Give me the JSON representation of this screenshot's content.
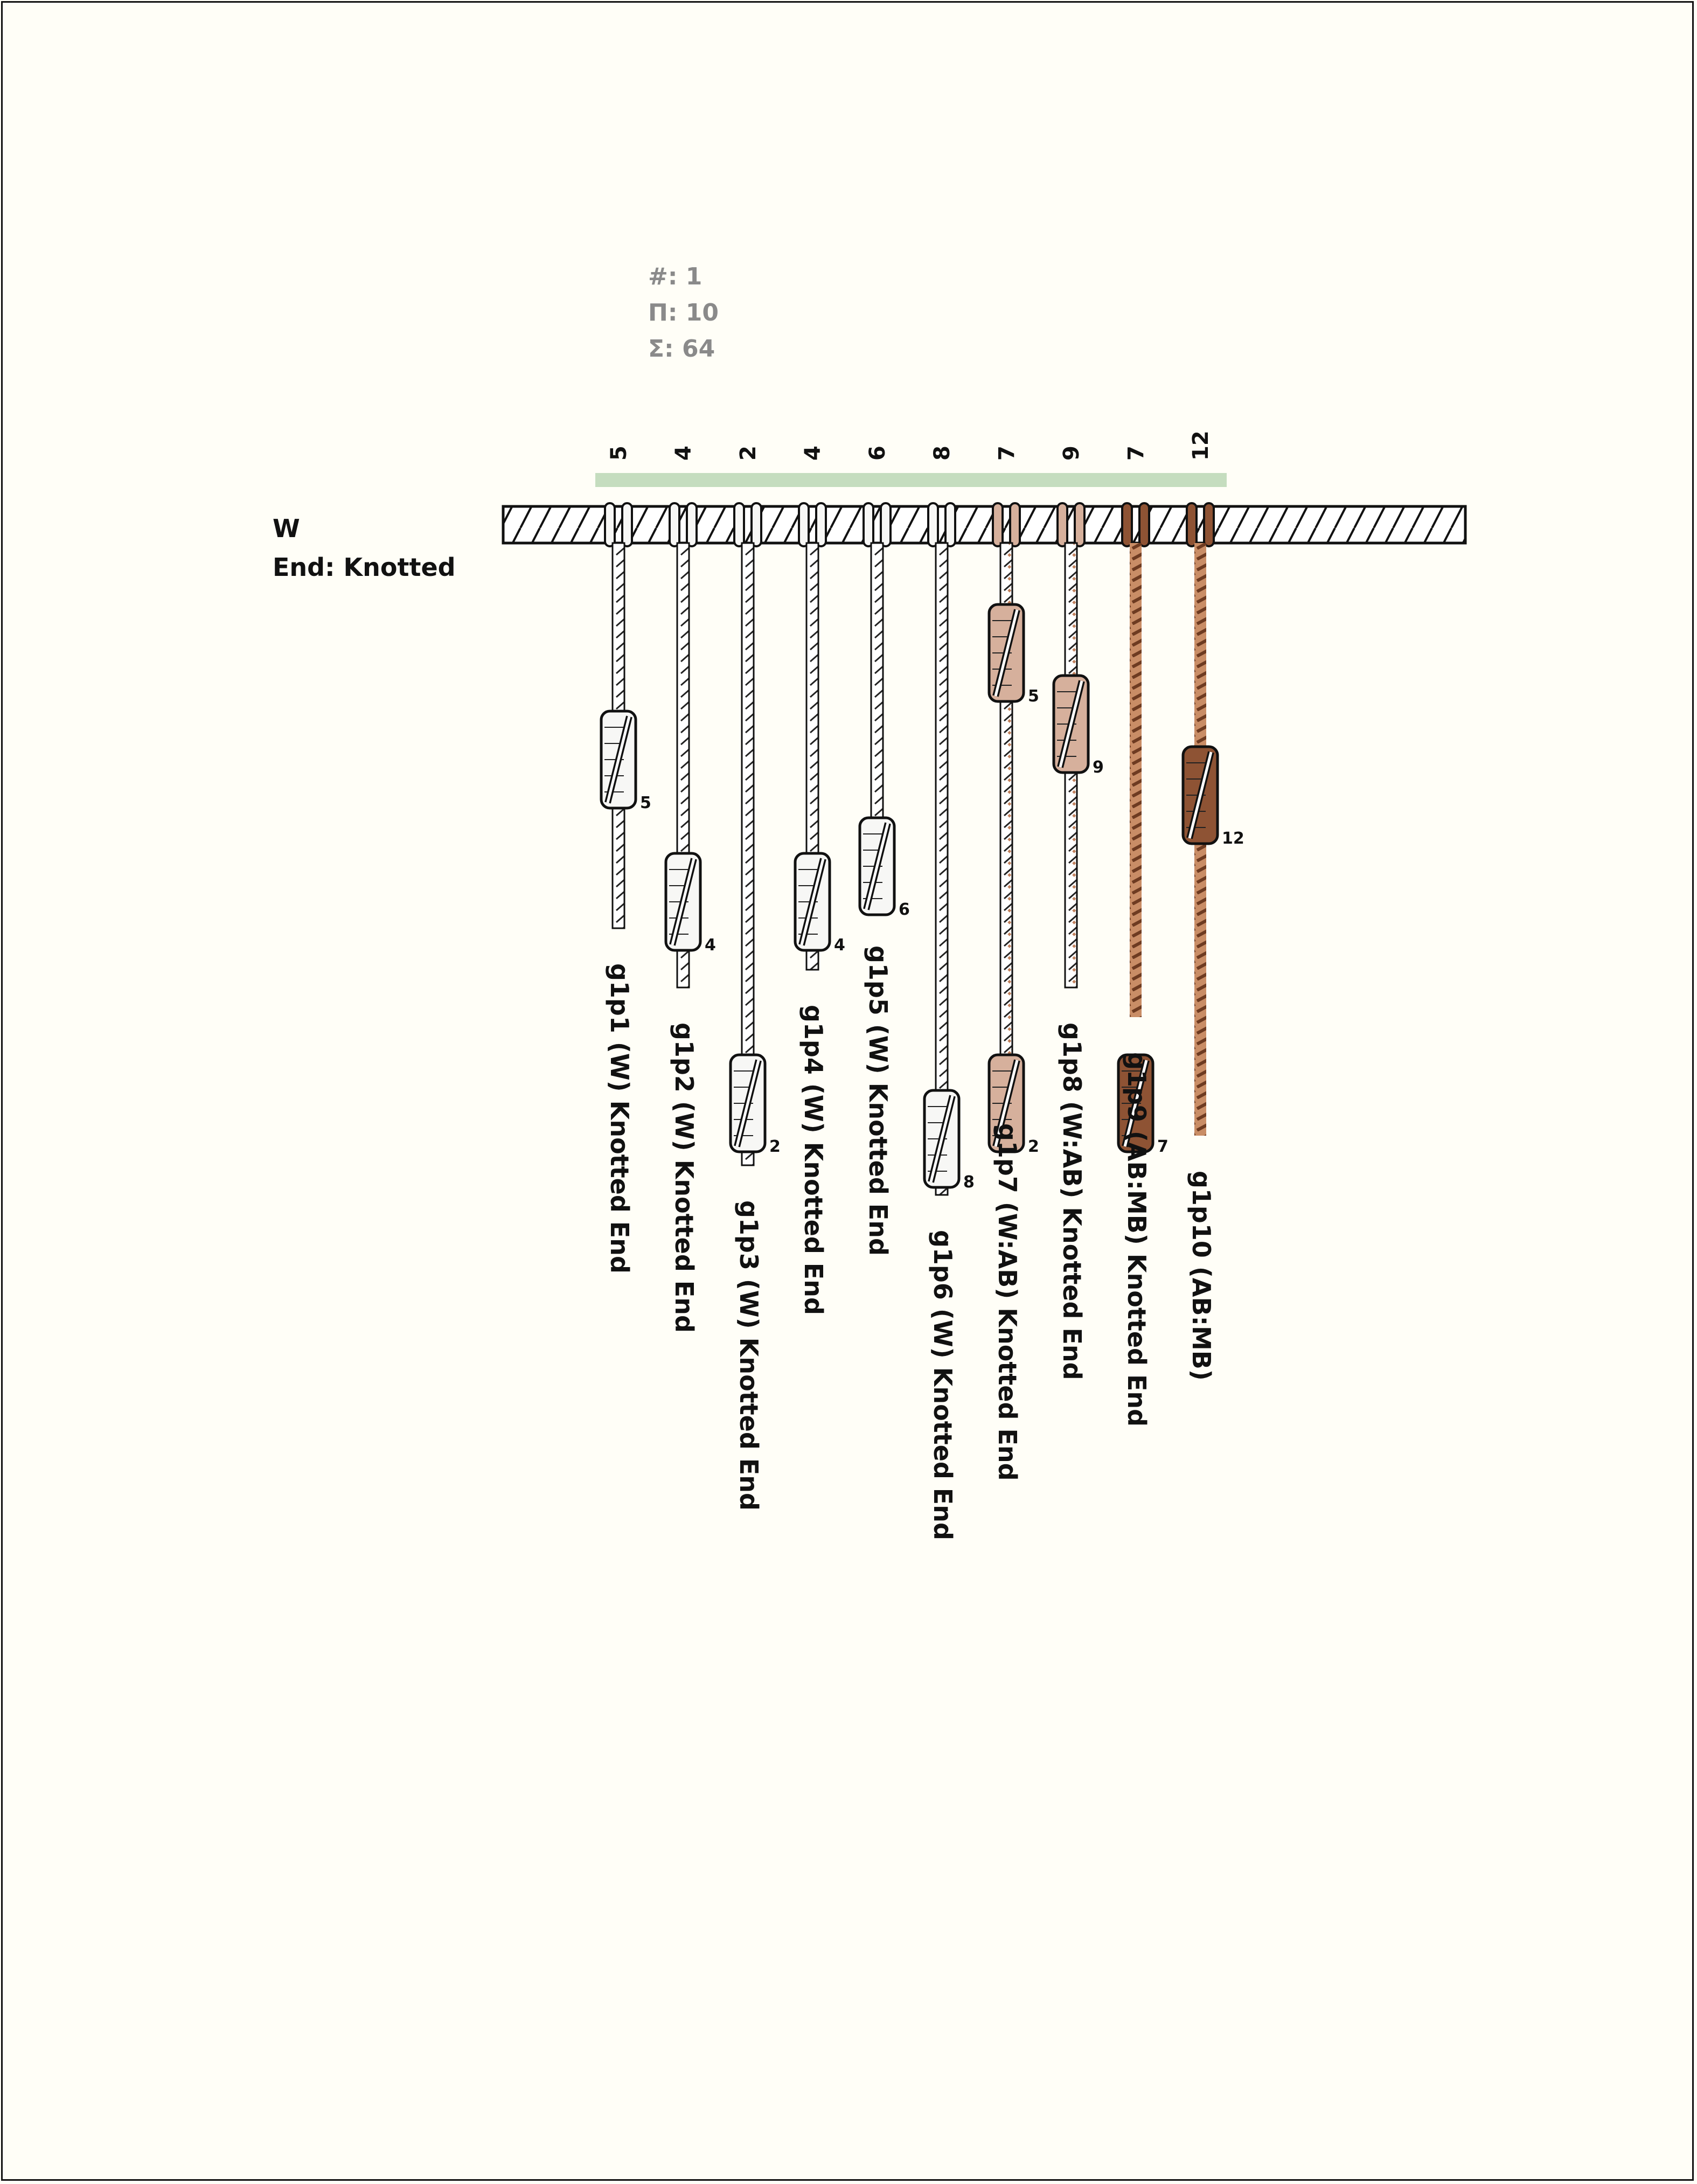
{
  "stats": {
    "count": "#: 1",
    "product": "Π: 10",
    "sum": "Σ: 64"
  },
  "main_cord": {
    "color": "W",
    "end": "End: Knotted"
  },
  "colors": {
    "background": "#fffef7",
    "group_bar": "#c5ddbf",
    "W": "#f7f7f5",
    "AB": "#d6b09c",
    "MB": "#8e5334",
    "knot_dark": "#6e3b21"
  },
  "pendants": [
    {
      "id": "g1p1",
      "sum": "5",
      "label": "g1p1 (W) Knotted End",
      "colors": [
        "W"
      ],
      "knots": [
        {
          "value": "5",
          "pos": 0.42
        }
      ],
      "length": 0.65
    },
    {
      "id": "g1p2",
      "sum": "4",
      "label": "g1p2 (W) Knotted End",
      "colors": [
        "W"
      ],
      "knots": [
        {
          "value": "4",
          "pos": 0.66
        }
      ],
      "length": 0.75
    },
    {
      "id": "g1p3",
      "sum": "2",
      "label": "g1p3 (W) Knotted End",
      "colors": [
        "W"
      ],
      "knots": [
        {
          "value": "2",
          "pos": 1.0
        }
      ],
      "length": 1.05
    },
    {
      "id": "g1p4",
      "sum": "4",
      "label": "g1p4 (W) Knotted End",
      "colors": [
        "W"
      ],
      "knots": [
        {
          "value": "4",
          "pos": 0.66
        }
      ],
      "length": 0.72
    },
    {
      "id": "g1p5",
      "sum": "6",
      "label": "g1p5 (W) Knotted End",
      "colors": [
        "W"
      ],
      "knots": [
        {
          "value": "6",
          "pos": 0.6
        }
      ],
      "length": 0.62
    },
    {
      "id": "g1p6",
      "sum": "8",
      "label": "g1p6 (W) Knotted End",
      "colors": [
        "W"
      ],
      "knots": [
        {
          "value": "8",
          "pos": 1.06
        }
      ],
      "length": 1.1
    },
    {
      "id": "g1p7",
      "sum": "7",
      "label": "g1p7 (W:AB) Knotted End",
      "colors": [
        "W",
        "AB"
      ],
      "knots": [
        {
          "value": "5",
          "pos": 0.24
        },
        {
          "value": "2",
          "pos": 1.0
        }
      ],
      "length": 0.92
    },
    {
      "id": "g1p8",
      "sum": "9",
      "label": "g1p8 (W:AB) Knotted End",
      "colors": [
        "W",
        "AB"
      ],
      "knots": [
        {
          "value": "9",
          "pos": 0.36
        }
      ],
      "length": 0.75
    },
    {
      "id": "g1p9",
      "sum": "7",
      "label": "g1p9 (AB:MB) Knotted End",
      "colors": [
        "AB",
        "MB"
      ],
      "knots": [
        {
          "value": "7",
          "pos": 1.0
        }
      ],
      "length": 0.8
    },
    {
      "id": "g1p10",
      "sum": "12",
      "label": "g1p10 (AB:MB)",
      "colors": [
        "AB",
        "MB"
      ],
      "knots": [
        {
          "value": "12",
          "pos": 0.48
        }
      ],
      "length": 1.0
    }
  ]
}
